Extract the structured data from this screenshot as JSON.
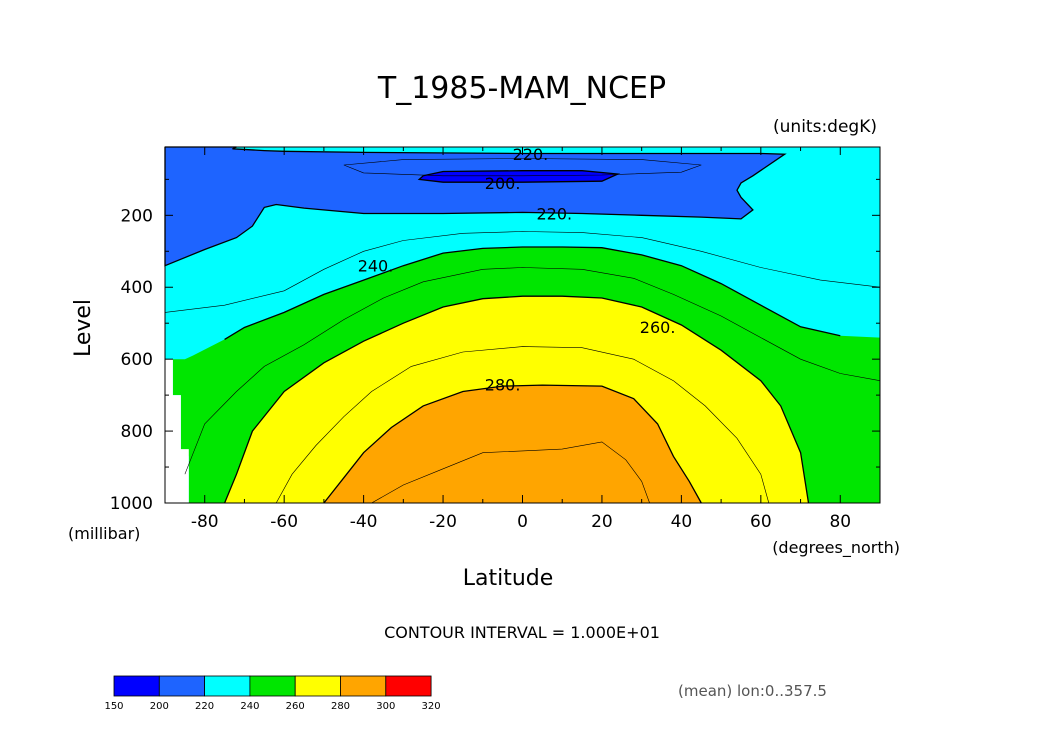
{
  "chart_data": {
    "type": "heatmap",
    "title": "T_1985-MAM_NCEP",
    "units_label": "(units:degK)",
    "xlabel": "Latitude",
    "x_units_label": "(degrees_north)",
    "ylabel": "Level",
    "y_units_label": "(millibar)",
    "xlim": [
      -90,
      90
    ],
    "ylim": [
      1000,
      10
    ],
    "y_inverted": true,
    "x_ticks": [
      "-80",
      "-60",
      "-40",
      "-20",
      "0",
      "20",
      "40",
      "60",
      "80"
    ],
    "x_tick_values": [
      -80,
      -60,
      -40,
      -20,
      0,
      20,
      40,
      60,
      80
    ],
    "y_ticks": [
      "200",
      "400",
      "600",
      "800",
      "1000"
    ],
    "y_tick_values": [
      200,
      400,
      600,
      800,
      1000
    ],
    "contour_interval_text": "CONTOUR INTERVAL = 1.000E+01",
    "footnote": "(mean) lon:0..357.5",
    "contour_labels": [
      {
        "text": "220.",
        "lat": 2,
        "level": 30
      },
      {
        "text": "200.",
        "lat": -5,
        "level": 110
      },
      {
        "text": "220.",
        "lat": 8,
        "level": 195
      },
      {
        "text": "240.",
        "lat": -37,
        "level": 340
      },
      {
        "text": "260.",
        "lat": 34,
        "level": 510
      },
      {
        "text": "280.",
        "lat": -5,
        "level": 670
      }
    ],
    "colorbar": {
      "levels": [
        "150",
        "200",
        "220",
        "240",
        "260",
        "280",
        "300",
        "320"
      ],
      "colors": [
        "#0000ff",
        "#1e64ff",
        "#00ffff",
        "#00e600",
        "#ffff00",
        "#ffa500",
        "#ff0000"
      ]
    },
    "regions": [
      {
        "name": "band-200-220",
        "color": "#1e64ff",
        "points": [
          [
            -90,
            20
          ],
          [
            90,
            20
          ],
          [
            90,
            210
          ],
          [
            -90,
            340
          ]
        ]
      }
    ]
  }
}
